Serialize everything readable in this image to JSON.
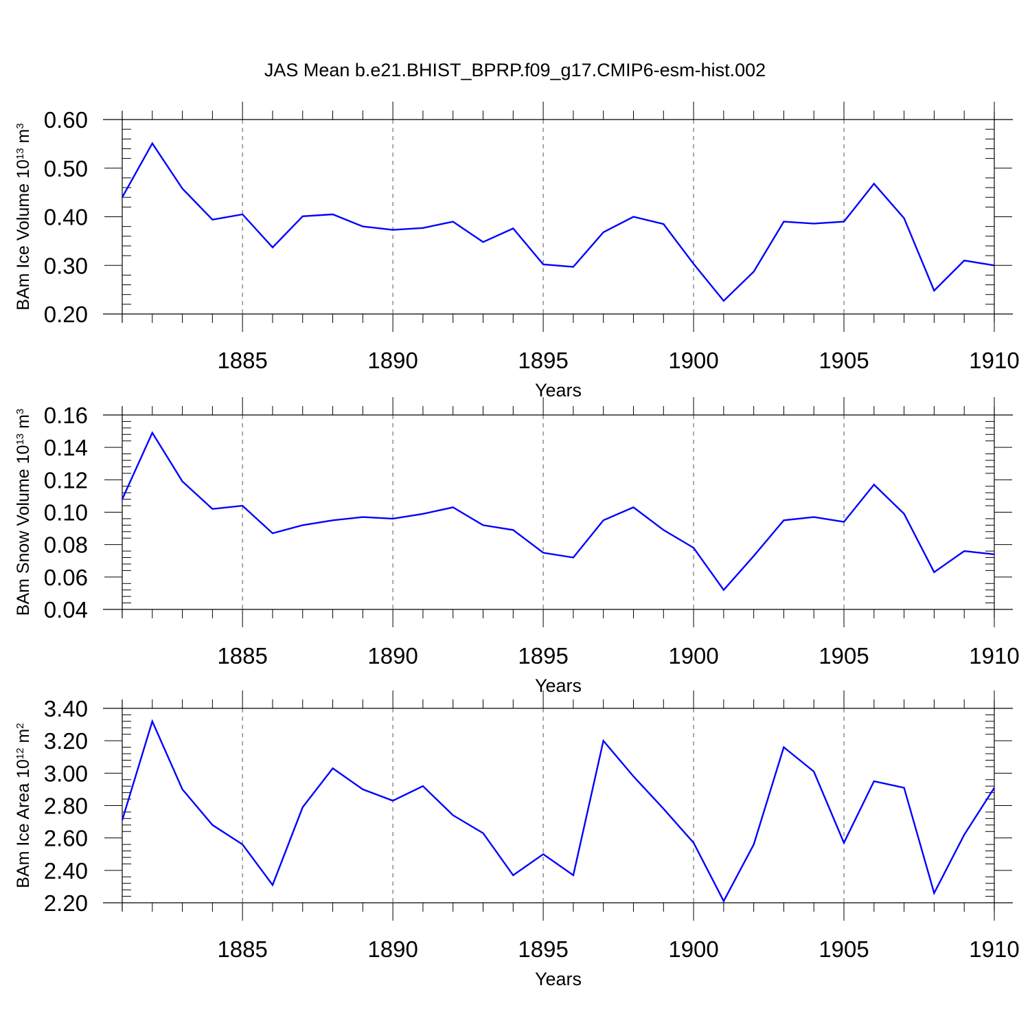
{
  "title": "JAS Mean b.e21.BHIST_BPRP.f09_g17.CMIP6-esm-hist.002",
  "colors": {
    "line": "#0000ff",
    "axis": "#000000",
    "grid": "#555555"
  },
  "chart_data": [
    {
      "type": "line",
      "ylabel": {
        "main": "BAm Ice Volume 10",
        "exp": "13",
        "unit": " m",
        "unit_exp": "3"
      },
      "xlabel": "Years",
      "xlim": [
        1881,
        1910
      ],
      "ylim": [
        0.2,
        0.6
      ],
      "yticks": [
        0.2,
        0.3,
        0.4,
        0.5,
        0.6
      ],
      "ytick_labels": [
        "0.20",
        "0.30",
        "0.40",
        "0.50",
        "0.60"
      ],
      "xticks": [
        1885,
        1890,
        1895,
        1900,
        1905,
        1910
      ],
      "xtick_labels": [
        "1885",
        "1890",
        "1895",
        "1900",
        "1905",
        "1910"
      ],
      "grid": "vertical dashed at major x ticks",
      "x": [
        1881,
        1882,
        1883,
        1884,
        1885,
        1886,
        1887,
        1888,
        1889,
        1890,
        1891,
        1892,
        1893,
        1894,
        1895,
        1896,
        1897,
        1898,
        1899,
        1900,
        1901,
        1902,
        1903,
        1904,
        1905,
        1906,
        1907,
        1908,
        1909,
        1910
      ],
      "series": [
        {
          "values": [
            0.44,
            0.551,
            0.458,
            0.394,
            0.405,
            0.337,
            0.401,
            0.405,
            0.38,
            0.373,
            0.377,
            0.39,
            0.348,
            0.376,
            0.302,
            0.297,
            0.368,
            0.4,
            0.385,
            0.303,
            0.227,
            0.287,
            0.39,
            0.386,
            0.39,
            0.468,
            0.397,
            0.248,
            0.31,
            0.3
          ]
        }
      ]
    },
    {
      "type": "line",
      "ylabel": {
        "main": "BAm Snow Volume 10",
        "exp": "13",
        "unit": " m",
        "unit_exp": "3"
      },
      "xlabel": "Years",
      "xlim": [
        1881,
        1910
      ],
      "ylim": [
        0.04,
        0.16
      ],
      "yticks": [
        0.04,
        0.06,
        0.08,
        0.1,
        0.12,
        0.14,
        0.16
      ],
      "ytick_labels": [
        "0.04",
        "0.06",
        "0.08",
        "0.10",
        "0.12",
        "0.14",
        "0.16"
      ],
      "xticks": [
        1885,
        1890,
        1895,
        1900,
        1905,
        1910
      ],
      "xtick_labels": [
        "1885",
        "1890",
        "1895",
        "1900",
        "1905",
        "1910"
      ],
      "grid": "vertical dashed at major x ticks",
      "x": [
        1881,
        1882,
        1883,
        1884,
        1885,
        1886,
        1887,
        1888,
        1889,
        1890,
        1891,
        1892,
        1893,
        1894,
        1895,
        1896,
        1897,
        1898,
        1899,
        1900,
        1901,
        1902,
        1903,
        1904,
        1905,
        1906,
        1907,
        1908,
        1909,
        1910
      ],
      "series": [
        {
          "values": [
            0.108,
            0.149,
            0.119,
            0.102,
            0.104,
            0.087,
            0.092,
            0.095,
            0.097,
            0.096,
            0.099,
            0.103,
            0.092,
            0.089,
            0.075,
            0.072,
            0.095,
            0.103,
            0.089,
            0.078,
            0.052,
            0.073,
            0.095,
            0.097,
            0.094,
            0.117,
            0.099,
            0.063,
            0.076,
            0.074
          ]
        }
      ]
    },
    {
      "type": "line",
      "ylabel": {
        "main": "BAm Ice Area 10",
        "exp": "12",
        "unit": " m",
        "unit_exp": "2"
      },
      "xlabel": "Years",
      "xlim": [
        1881,
        1910
      ],
      "ylim": [
        2.2,
        3.4
      ],
      "yticks": [
        2.2,
        2.4,
        2.6,
        2.8,
        3.0,
        3.2,
        3.4
      ],
      "ytick_labels": [
        "2.20",
        "2.40",
        "2.60",
        "2.80",
        "3.00",
        "3.20",
        "3.40"
      ],
      "xticks": [
        1885,
        1890,
        1895,
        1900,
        1905,
        1910
      ],
      "xtick_labels": [
        "1885",
        "1890",
        "1895",
        "1900",
        "1905",
        "1910"
      ],
      "grid": "vertical dashed at major x ticks",
      "x": [
        1881,
        1882,
        1883,
        1884,
        1885,
        1886,
        1887,
        1888,
        1889,
        1890,
        1891,
        1892,
        1893,
        1894,
        1895,
        1896,
        1897,
        1898,
        1899,
        1900,
        1901,
        1902,
        1903,
        1904,
        1905,
        1906,
        1907,
        1908,
        1909,
        1910
      ],
      "series": [
        {
          "values": [
            2.71,
            3.32,
            2.9,
            2.68,
            2.56,
            2.31,
            2.79,
            3.03,
            2.9,
            2.83,
            2.92,
            2.74,
            2.63,
            2.37,
            2.5,
            2.37,
            3.2,
            2.98,
            2.78,
            2.57,
            2.21,
            2.56,
            3.16,
            3.01,
            2.57,
            2.95,
            2.91,
            2.26,
            2.62,
            2.91
          ]
        }
      ]
    }
  ]
}
